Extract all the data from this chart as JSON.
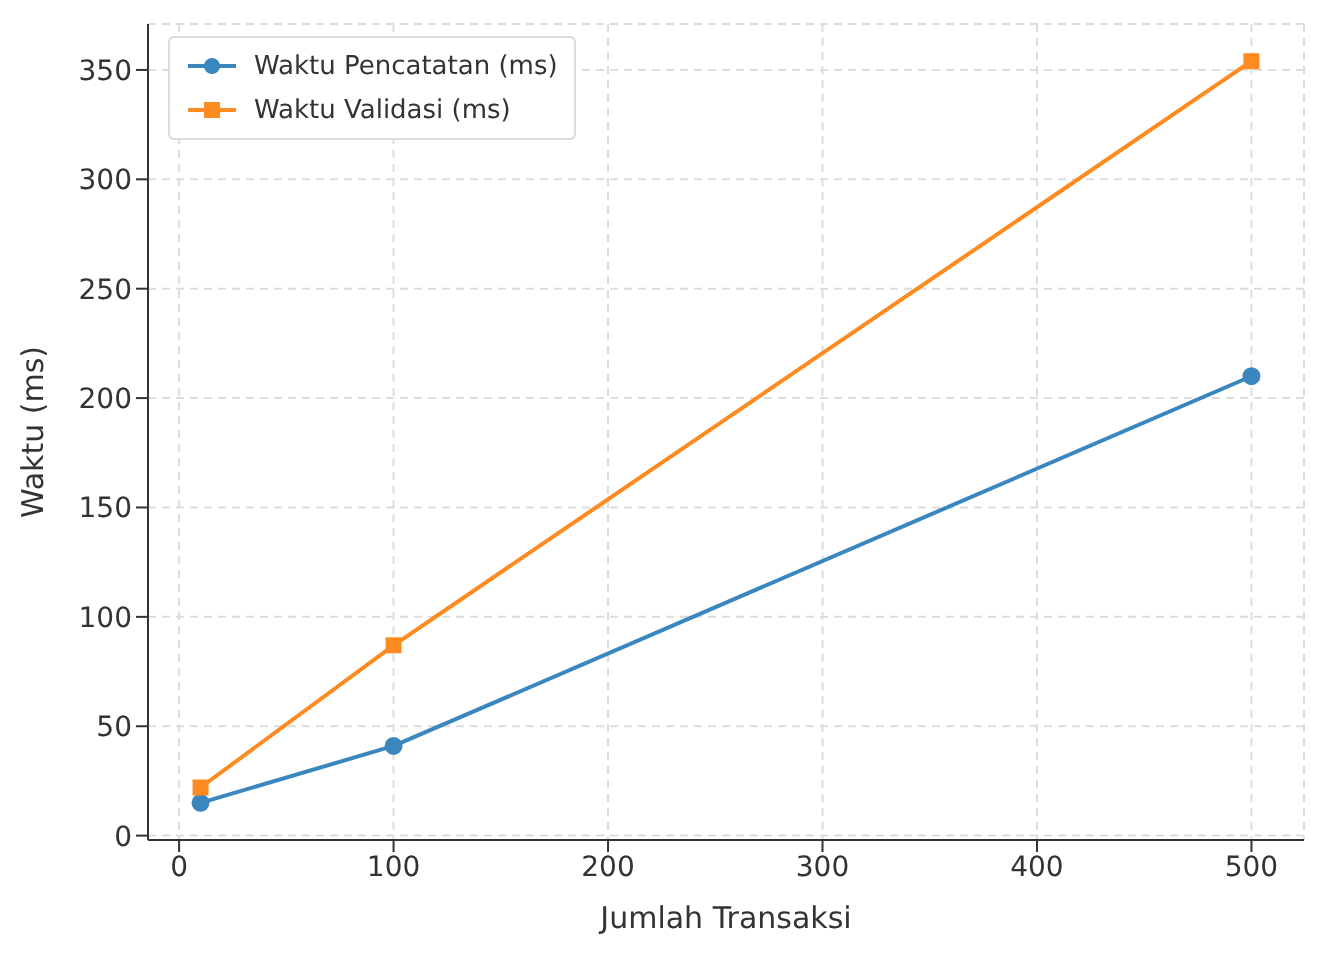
{
  "chart_data": {
    "type": "line",
    "xlabel": "Jumlah Transaksi",
    "ylabel": "Waktu (ms)",
    "x": [
      10,
      100,
      500
    ],
    "series": [
      {
        "name": "Waktu Pencatatan (ms)",
        "color": "#3a87c0",
        "values": [
          15,
          41,
          210
        ],
        "marker": "circle"
      },
      {
        "name": "Waktu Validasi (ms)",
        "color": "#ff8a1f",
        "values": [
          22,
          87,
          354
        ],
        "marker": "square"
      }
    ],
    "xlim": [
      -14.5,
      524.5
    ],
    "xticks": [
      0,
      100,
      200,
      300,
      400,
      500
    ],
    "ylim": [
      -2,
      371
    ],
    "yticks": [
      0,
      50,
      100,
      150,
      200,
      250,
      300,
      350
    ],
    "grid": true,
    "legend": "top left",
    "line_style": "solid"
  }
}
